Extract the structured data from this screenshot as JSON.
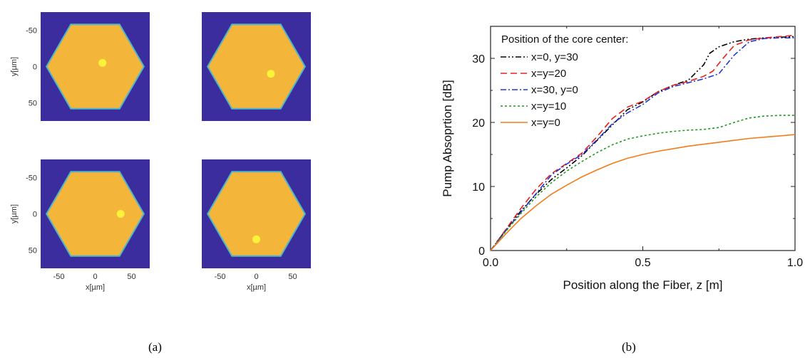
{
  "captions": [
    "(a)",
    "(b)"
  ],
  "chart_data": [
    {
      "type": "heatmap",
      "xlabel": "",
      "ylabel": "y[µm]",
      "xlim": [
        -75,
        75
      ],
      "ylim": [
        -75,
        75
      ],
      "xticks": [],
      "yticks": [
        "-50",
        "0",
        "50"
      ],
      "core_center": [
        10,
        -5
      ],
      "colors": {
        "background": "#3b2d9e",
        "cladding": "#f3b53a",
        "edge": "#4fb6c9",
        "core": "#fbf33a"
      }
    },
    {
      "type": "heatmap",
      "xlabel": "",
      "ylabel": "",
      "xlim": [
        -75,
        75
      ],
      "ylim": [
        -75,
        75
      ],
      "xticks": [],
      "yticks": [],
      "core_center": [
        20,
        10
      ],
      "colors": {
        "background": "#3b2d9e",
        "cladding": "#f3b53a",
        "edge": "#4fb6c9",
        "core": "#fbf33a"
      }
    },
    {
      "type": "heatmap",
      "xlabel": "x[µm]",
      "ylabel": "y[µm]",
      "xlim": [
        -75,
        75
      ],
      "ylim": [
        -75,
        75
      ],
      "xticks": [
        "-50",
        "0",
        "50"
      ],
      "yticks": [
        "-50",
        "0",
        "50"
      ],
      "core_center": [
        35,
        0
      ],
      "colors": {
        "background": "#3b2d9e",
        "cladding": "#f3b53a",
        "edge": "#4fb6c9",
        "core": "#fbf33a"
      }
    },
    {
      "type": "heatmap",
      "xlabel": "x[µm]",
      "ylabel": "",
      "xlim": [
        -75,
        75
      ],
      "ylim": [
        -75,
        75
      ],
      "xticks": [
        "-50",
        "0",
        "50"
      ],
      "yticks": [],
      "core_center": [
        0,
        35
      ],
      "colors": {
        "background": "#3b2d9e",
        "cladding": "#f3b53a",
        "edge": "#4fb6c9",
        "core": "#fbf33a"
      }
    },
    {
      "type": "line",
      "title": "",
      "xlabel": "Position along the Fiber, z [m]",
      "ylabel": "Pump Absoprtion [dB]",
      "xlim": [
        0,
        1
      ],
      "ylim": [
        0,
        35
      ],
      "xticks": [
        0.0,
        0.5,
        1.0
      ],
      "xtick_labels": [
        "0.0",
        "0.5",
        "1.0"
      ],
      "yticks": [
        0,
        10,
        20,
        30
      ],
      "ytick_labels": [
        "0",
        "10",
        "20",
        "30"
      ],
      "legend_title": "Position of the core center:",
      "legend_position": "top-left",
      "series": [
        {
          "name": "x=0, y=30",
          "color": "#000000",
          "dash": "8,3,2,3,2,3",
          "x": [
            0,
            0.05,
            0.1,
            0.15,
            0.2,
            0.25,
            0.3,
            0.35,
            0.4,
            0.45,
            0.5,
            0.55,
            0.6,
            0.65,
            0.7,
            0.72,
            0.75,
            0.8,
            0.85,
            0.9,
            0.95,
            1.0
          ],
          "y": [
            0,
            3.2,
            6.2,
            8.8,
            11.1,
            12.9,
            14.8,
            17.2,
            19.6,
            22.0,
            23.2,
            24.8,
            25.8,
            26.6,
            29.0,
            30.8,
            31.8,
            32.6,
            33.0,
            33.2,
            33.3,
            33.4
          ]
        },
        {
          "name": "x=y=20",
          "color": "#e8201e",
          "dash": "9,5",
          "x": [
            0,
            0.05,
            0.1,
            0.15,
            0.2,
            0.25,
            0.3,
            0.35,
            0.4,
            0.45,
            0.5,
            0.55,
            0.6,
            0.65,
            0.7,
            0.73,
            0.76,
            0.8,
            0.85,
            0.9,
            0.95,
            1.0
          ],
          "y": [
            0,
            3.3,
            6.6,
            9.6,
            12.0,
            13.6,
            15.2,
            17.8,
            20.6,
            22.4,
            23.3,
            24.8,
            25.8,
            26.4,
            27.2,
            28.0,
            29.8,
            32.0,
            32.9,
            33.2,
            33.4,
            33.6
          ]
        },
        {
          "name": "x=30, y=0",
          "color": "#2336d6",
          "dash": "8,3,2,3",
          "x": [
            0,
            0.05,
            0.1,
            0.15,
            0.2,
            0.25,
            0.3,
            0.35,
            0.4,
            0.45,
            0.5,
            0.55,
            0.6,
            0.65,
            0.7,
            0.75,
            0.8,
            0.85,
            0.9,
            0.95,
            1.0
          ],
          "y": [
            0,
            3.1,
            6.0,
            8.9,
            11.8,
            13.5,
            15.0,
            17.3,
            19.8,
            21.5,
            22.8,
            24.6,
            25.6,
            26.2,
            26.8,
            27.6,
            30.5,
            32.6,
            33.1,
            33.2,
            33.2
          ]
        },
        {
          "name": "x=y=10",
          "color": "#1f9a1f",
          "dash": "3,3",
          "x": [
            0,
            0.05,
            0.1,
            0.15,
            0.2,
            0.25,
            0.3,
            0.35,
            0.4,
            0.45,
            0.5,
            0.55,
            0.6,
            0.65,
            0.7,
            0.75,
            0.8,
            0.85,
            0.9,
            0.95,
            1.0
          ],
          "y": [
            0,
            3.0,
            5.8,
            8.4,
            10.6,
            12.4,
            13.9,
            15.3,
            16.5,
            17.4,
            17.9,
            18.3,
            18.6,
            18.8,
            18.9,
            19.2,
            20.0,
            20.7,
            21.0,
            21.1,
            21.1
          ]
        },
        {
          "name": "x=y=0",
          "color": "#f07d1a",
          "dash": "",
          "x": [
            0,
            0.05,
            0.1,
            0.15,
            0.2,
            0.25,
            0.3,
            0.35,
            0.4,
            0.45,
            0.5,
            0.55,
            0.6,
            0.65,
            0.7,
            0.75,
            0.8,
            0.85,
            0.9,
            0.95,
            1.0
          ],
          "y": [
            0,
            2.6,
            5.0,
            7.0,
            8.8,
            10.2,
            11.5,
            12.6,
            13.6,
            14.4,
            15.0,
            15.5,
            15.9,
            16.3,
            16.6,
            16.9,
            17.2,
            17.5,
            17.7,
            17.9,
            18.1
          ]
        }
      ]
    }
  ]
}
